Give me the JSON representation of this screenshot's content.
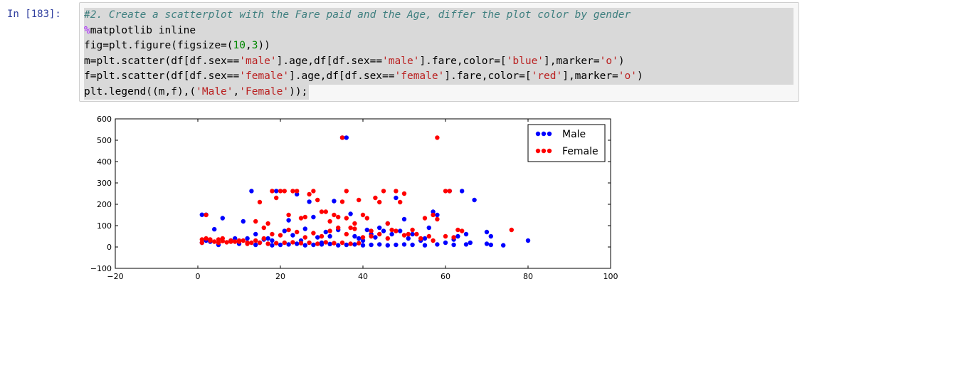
{
  "cell": {
    "prompt": "In [183]:",
    "lines": [
      [
        {
          "t": "#2. Create a scatterplot with the Fare paid and the Age, differ the plot color by gender",
          "c": "com"
        }
      ],
      [
        {
          "t": "%",
          "c": "mag"
        },
        {
          "t": "matplotlib inline",
          "c": ""
        }
      ],
      [
        {
          "t": "fig=plt.figure(figsize=(",
          "c": ""
        },
        {
          "t": "10",
          "c": "num"
        },
        {
          "t": ",",
          "c": ""
        },
        {
          "t": "3",
          "c": "num"
        },
        {
          "t": "))",
          "c": ""
        }
      ],
      [
        {
          "t": "m=plt.scatter(df[df.sex==",
          "c": ""
        },
        {
          "t": "'male'",
          "c": "str"
        },
        {
          "t": "].age,df[df.sex==",
          "c": ""
        },
        {
          "t": "'male'",
          "c": "str"
        },
        {
          "t": "].fare,color=[",
          "c": ""
        },
        {
          "t": "'blue'",
          "c": "str"
        },
        {
          "t": "],marker=",
          "c": ""
        },
        {
          "t": "'o'",
          "c": "str"
        },
        {
          "t": ")",
          "c": ""
        }
      ],
      [
        {
          "t": "f=plt.scatter(df[df.sex==",
          "c": ""
        },
        {
          "t": "'female'",
          "c": "str"
        },
        {
          "t": "].age,df[df.sex==",
          "c": ""
        },
        {
          "t": "'female'",
          "c": "str"
        },
        {
          "t": "].fare,color=[",
          "c": ""
        },
        {
          "t": "'red'",
          "c": "str"
        },
        {
          "t": "],marker=",
          "c": ""
        },
        {
          "t": "'o'",
          "c": "str"
        },
        {
          "t": ")",
          "c": ""
        }
      ],
      [
        {
          "t": "plt.legend((m,f),(",
          "c": ""
        },
        {
          "t": "'Male'",
          "c": "str"
        },
        {
          "t": ",",
          "c": ""
        },
        {
          "t": "'Female'",
          "c": "str"
        },
        {
          "t": "));",
          "c": ""
        }
      ]
    ]
  },
  "chart_data": {
    "type": "scatter",
    "xlim": [
      -20,
      100
    ],
    "ylim": [
      -100,
      600
    ],
    "x_ticks": [
      -20,
      0,
      20,
      40,
      60,
      80,
      100
    ],
    "y_ticks": [
      -100,
      0,
      100,
      200,
      300,
      400,
      500,
      600
    ],
    "x_tick_labels": [
      "−20",
      "0",
      "20",
      "40",
      "60",
      "80",
      "100"
    ],
    "y_tick_labels": [
      "−100",
      "0",
      "100",
      "200",
      "300",
      "400",
      "500",
      "600"
    ],
    "legend_position": "top-right",
    "series": [
      {
        "name": "Male",
        "color": "#0000ff",
        "points": [
          [
            1,
            151
          ],
          [
            2,
            151
          ],
          [
            1,
            20
          ],
          [
            2,
            30
          ],
          [
            3,
            25
          ],
          [
            4,
            83
          ],
          [
            6,
            135
          ],
          [
            8,
            30
          ],
          [
            9,
            40
          ],
          [
            11,
            120
          ],
          [
            12,
            40
          ],
          [
            13,
            262
          ],
          [
            14,
            60
          ],
          [
            15,
            20
          ],
          [
            16,
            35
          ],
          [
            17,
            40
          ],
          [
            18,
            30
          ],
          [
            19,
            262
          ],
          [
            20,
            10
          ],
          [
            21,
            75
          ],
          [
            22,
            125
          ],
          [
            23,
            55
          ],
          [
            24,
            247
          ],
          [
            25,
            30
          ],
          [
            26,
            85
          ],
          [
            27,
            212
          ],
          [
            28,
            140
          ],
          [
            29,
            45
          ],
          [
            30,
            20
          ],
          [
            31,
            70
          ],
          [
            32,
            50
          ],
          [
            33,
            215
          ],
          [
            34,
            80
          ],
          [
            35,
            512
          ],
          [
            36,
            512
          ],
          [
            37,
            155
          ],
          [
            38,
            50
          ],
          [
            39,
            40
          ],
          [
            40,
            30
          ],
          [
            41,
            80
          ],
          [
            42,
            60
          ],
          [
            43,
            45
          ],
          [
            44,
            90
          ],
          [
            45,
            75
          ],
          [
            46,
            110
          ],
          [
            47,
            60
          ],
          [
            48,
            230
          ],
          [
            49,
            75
          ],
          [
            50,
            130
          ],
          [
            51,
            40
          ],
          [
            52,
            60
          ],
          [
            54,
            30
          ],
          [
            55,
            40
          ],
          [
            56,
            90
          ],
          [
            57,
            165
          ],
          [
            58,
            150
          ],
          [
            60,
            20
          ],
          [
            61,
            262
          ],
          [
            62,
            35
          ],
          [
            63,
            50
          ],
          [
            64,
            262
          ],
          [
            65,
            60
          ],
          [
            66,
            20
          ],
          [
            67,
            220
          ],
          [
            70,
            70
          ],
          [
            70,
            15
          ],
          [
            71,
            50
          ],
          [
            71,
            10
          ],
          [
            74,
            8
          ],
          [
            80,
            30
          ],
          [
            5,
            10
          ],
          [
            10,
            15
          ],
          [
            14,
            10
          ],
          [
            18,
            8
          ],
          [
            22,
            12
          ],
          [
            24,
            15
          ],
          [
            26,
            8
          ],
          [
            28,
            10
          ],
          [
            30,
            12
          ],
          [
            32,
            14
          ],
          [
            34,
            8
          ],
          [
            36,
            10
          ],
          [
            38,
            12
          ],
          [
            40,
            8
          ],
          [
            42,
            10
          ],
          [
            44,
            12
          ],
          [
            46,
            8
          ],
          [
            48,
            10
          ],
          [
            50,
            12
          ],
          [
            52,
            10
          ],
          [
            55,
            8
          ],
          [
            58,
            12
          ],
          [
            62,
            10
          ],
          [
            65,
            12
          ]
        ]
      },
      {
        "name": "Female",
        "color": "#ff0000",
        "points": [
          [
            1,
            20
          ],
          [
            2,
            150
          ],
          [
            3,
            30
          ],
          [
            4,
            25
          ],
          [
            5,
            20
          ],
          [
            6,
            28
          ],
          [
            7,
            22
          ],
          [
            8,
            30
          ],
          [
            9,
            25
          ],
          [
            10,
            25
          ],
          [
            11,
            30
          ],
          [
            12,
            20
          ],
          [
            13,
            20
          ],
          [
            14,
            120
          ],
          [
            15,
            210
          ],
          [
            16,
            90
          ],
          [
            17,
            110
          ],
          [
            18,
            262
          ],
          [
            19,
            230
          ],
          [
            20,
            262
          ],
          [
            21,
            262
          ],
          [
            22,
            150
          ],
          [
            23,
            262
          ],
          [
            24,
            262
          ],
          [
            25,
            135
          ],
          [
            26,
            140
          ],
          [
            27,
            247
          ],
          [
            28,
            262
          ],
          [
            29,
            220
          ],
          [
            30,
            165
          ],
          [
            31,
            165
          ],
          [
            32,
            120
          ],
          [
            33,
            150
          ],
          [
            34,
            140
          ],
          [
            35,
            512
          ],
          [
            35,
            212
          ],
          [
            36,
            262
          ],
          [
            36,
            135
          ],
          [
            37,
            90
          ],
          [
            38,
            110
          ],
          [
            39,
            220
          ],
          [
            40,
            150
          ],
          [
            41,
            135
          ],
          [
            42,
            75
          ],
          [
            43,
            230
          ],
          [
            44,
            210
          ],
          [
            45,
            262
          ],
          [
            46,
            110
          ],
          [
            47,
            80
          ],
          [
            48,
            262
          ],
          [
            49,
            210
          ],
          [
            50,
            250
          ],
          [
            51,
            60
          ],
          [
            52,
            80
          ],
          [
            53,
            60
          ],
          [
            55,
            135
          ],
          [
            56,
            50
          ],
          [
            57,
            150
          ],
          [
            58,
            512
          ],
          [
            58,
            130
          ],
          [
            60,
            262
          ],
          [
            61,
            262
          ],
          [
            63,
            80
          ],
          [
            64,
            75
          ],
          [
            76,
            80
          ],
          [
            1,
            35
          ],
          [
            2,
            40
          ],
          [
            3,
            35
          ],
          [
            5,
            35
          ],
          [
            6,
            40
          ],
          [
            8,
            25
          ],
          [
            10,
            30
          ],
          [
            12,
            15
          ],
          [
            14,
            30
          ],
          [
            16,
            40
          ],
          [
            18,
            60
          ],
          [
            20,
            55
          ],
          [
            22,
            80
          ],
          [
            24,
            70
          ],
          [
            26,
            45
          ],
          [
            28,
            65
          ],
          [
            30,
            50
          ],
          [
            32,
            75
          ],
          [
            34,
            90
          ],
          [
            36,
            60
          ],
          [
            38,
            85
          ],
          [
            40,
            45
          ],
          [
            42,
            50
          ],
          [
            44,
            60
          ],
          [
            46,
            40
          ],
          [
            48,
            75
          ],
          [
            50,
            55
          ],
          [
            54,
            40
          ],
          [
            57,
            30
          ],
          [
            60,
            50
          ],
          [
            62,
            45
          ],
          [
            15,
            20
          ],
          [
            17,
            15
          ],
          [
            19,
            18
          ],
          [
            21,
            20
          ],
          [
            23,
            22
          ],
          [
            25,
            18
          ],
          [
            27,
            20
          ],
          [
            29,
            15
          ],
          [
            31,
            22
          ],
          [
            33,
            18
          ],
          [
            35,
            20
          ],
          [
            37,
            15
          ],
          [
            39,
            18
          ]
        ]
      }
    ]
  }
}
